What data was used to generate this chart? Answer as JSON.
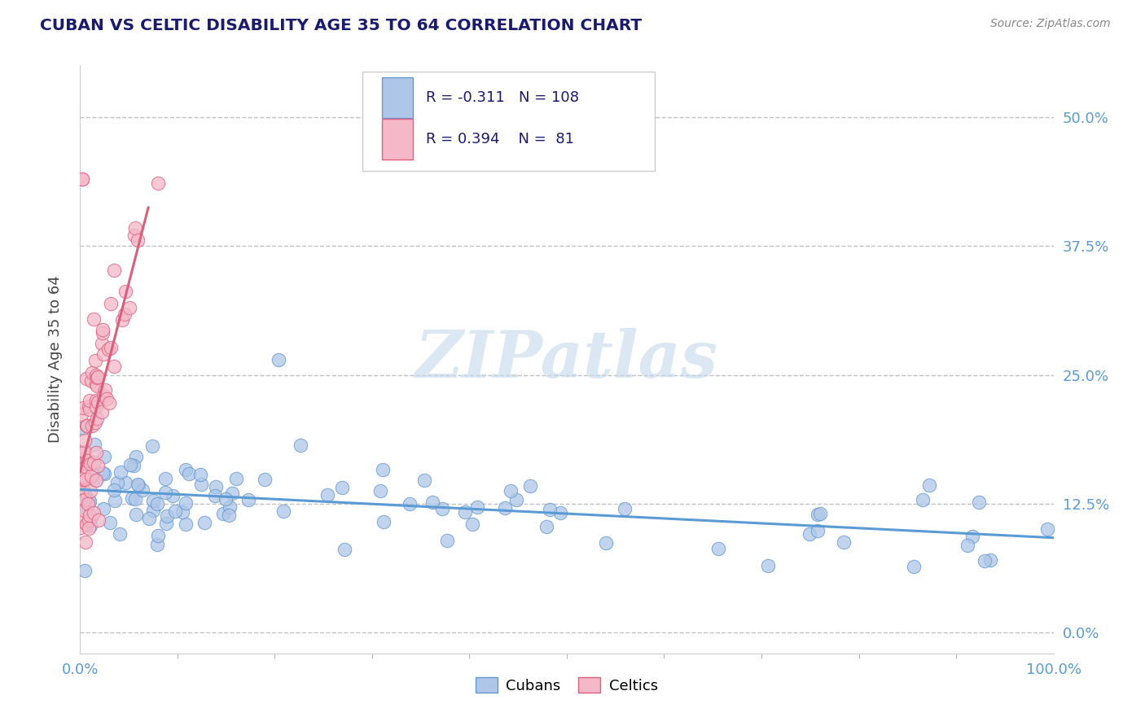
{
  "title": "CUBAN VS CELTIC DISABILITY AGE 35 TO 64 CORRELATION CHART",
  "source": "Source: ZipAtlas.com",
  "ylabel": "Disability Age 35 to 64",
  "xlim": [
    0.0,
    1.0
  ],
  "ylim": [
    -0.02,
    0.55
  ],
  "yticks": [
    0.0,
    0.125,
    0.25,
    0.375,
    0.5
  ],
  "ytick_labels_right": [
    "0.0%",
    "12.5%",
    "25.0%",
    "37.5%",
    "50.0%"
  ],
  "xtick_labels": [
    "0.0%",
    "100.0%"
  ],
  "title_color": "#1a1a6e",
  "source_color": "#888888",
  "axis_label_color": "#444444",
  "tick_color": "#5b9bd5",
  "grid_color": "#bbbbbb",
  "cubans_color": "#aec6e8",
  "celtics_color": "#f4b8c8",
  "cubans_edge_color": "#6699cc",
  "celtics_edge_color": "#e06080",
  "cubans_line_color": "#5b9bd5",
  "celtics_line_color": "#d9607a",
  "watermark_color": "#c5d8ed",
  "watermark": "ZIPatlas",
  "R_cubans": -0.311,
  "N_cubans": 108,
  "R_celtics": 0.394,
  "N_celtics": 81,
  "legend_title_color": "#1a1a6e",
  "legend_val_color": "#e05070"
}
